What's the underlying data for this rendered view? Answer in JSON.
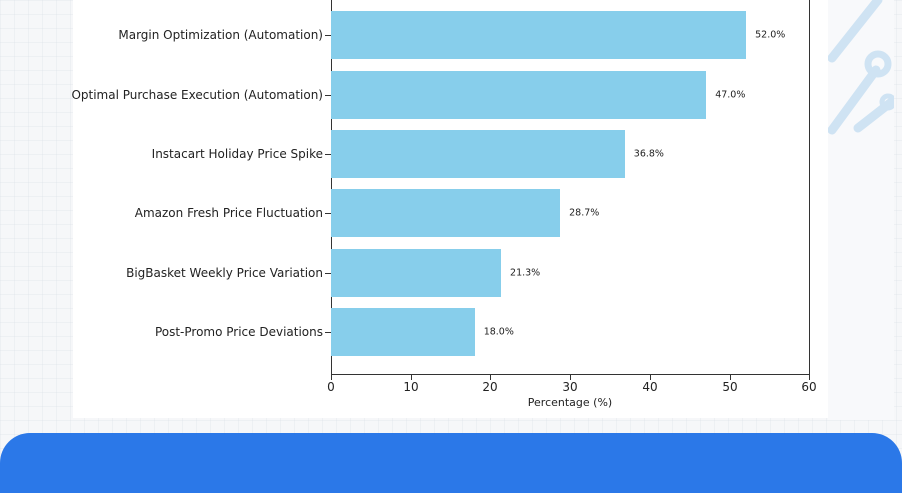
{
  "chart_data": {
    "type": "bar",
    "orientation": "horizontal",
    "title": "",
    "xlabel": "Percentage (%)",
    "ylabel": "",
    "xlim": [
      0,
      60
    ],
    "xticks": [
      "0",
      "10",
      "20",
      "30",
      "40",
      "50",
      "60"
    ],
    "grid": false,
    "bar_color": "#87ceeb",
    "categories": [
      "Margin Optimization (Automation)",
      "Optimal Purchase Execution (Automation)",
      "Instacart Holiday Price Spike",
      "Amazon Fresh Price Fluctuation",
      "BigBasket Weekly Price Variation",
      "Post-Promo Price Deviations"
    ],
    "values": [
      52.0,
      47.0,
      36.8,
      28.7,
      21.3,
      18.0
    ],
    "value_labels": [
      "52.0%",
      "47.0%",
      "36.8%",
      "28.7%",
      "21.3%",
      "18.0%"
    ]
  },
  "footer": {
    "color": "#2b78e8"
  }
}
